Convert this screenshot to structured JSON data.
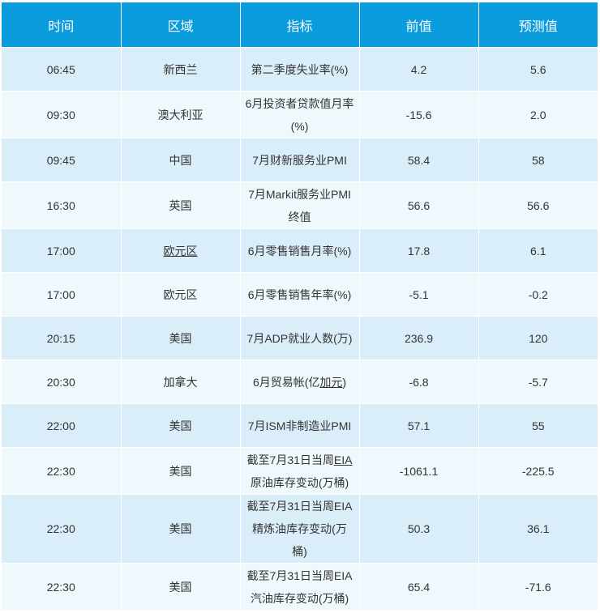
{
  "headers": [
    "时间",
    "区域",
    "指标",
    "前值",
    "预测值"
  ],
  "rows": [
    {
      "time": "06:45",
      "region": "新西兰",
      "indicator": "第二季度失业率(%)",
      "prev": "4.2",
      "forecast": "5.6"
    },
    {
      "time": "09:30",
      "region": "澳大利亚",
      "indicator": "6月投资者贷款值月率(%)",
      "prev": "-15.6",
      "forecast": "2.0"
    },
    {
      "time": "09:45",
      "region": "中国",
      "indicator": "7月财新服务业PMI",
      "prev": "58.4",
      "forecast": "58"
    },
    {
      "time": "16:30",
      "region": "英国",
      "indicator": "7月Markit服务业PMI终值",
      "prev": "56.6",
      "forecast": "56.6"
    },
    {
      "time": "17:00",
      "region": "欧元区",
      "indicator": "6月零售销售月率(%)",
      "prev": "17.8",
      "forecast": "6.1"
    },
    {
      "time": "17:00",
      "region": "欧元区",
      "indicator": "6月零售销售年率(%)",
      "prev": "-5.1",
      "forecast": "-0.2"
    },
    {
      "time": "20:15",
      "region": "美国",
      "indicator": "7月ADP就业人数(万)",
      "prev": "236.9",
      "forecast": "120"
    },
    {
      "time": "20:30",
      "region": "加拿大",
      "indicator_pre": "6月贸易帐(亿",
      "indicator_ul": "加元",
      "indicator_post": ")",
      "prev": "-6.8",
      "forecast": "-5.7"
    },
    {
      "time": "22:00",
      "region": "美国",
      "indicator": "7月ISM非制造业PMI",
      "prev": "57.1",
      "forecast": "55"
    },
    {
      "time": "22:30",
      "region": "美国",
      "indicator_pre": "截至7月31日当周",
      "indicator_ul": "EIA",
      "indicator_post": "原油库存变动(万桶)",
      "prev": "-1061.1",
      "forecast": "-225.5"
    },
    {
      "time": "22:30",
      "region": "美国",
      "indicator": "截至7月31日当周EIA精炼油库存变动(万桶)",
      "prev": "50.3",
      "forecast": "36.1"
    },
    {
      "time": "22:30",
      "region": "美国",
      "indicator": "截至7月31日当周EIA汽油库存变动(万桶)",
      "prev": "65.4",
      "forecast": "-71.6"
    }
  ]
}
